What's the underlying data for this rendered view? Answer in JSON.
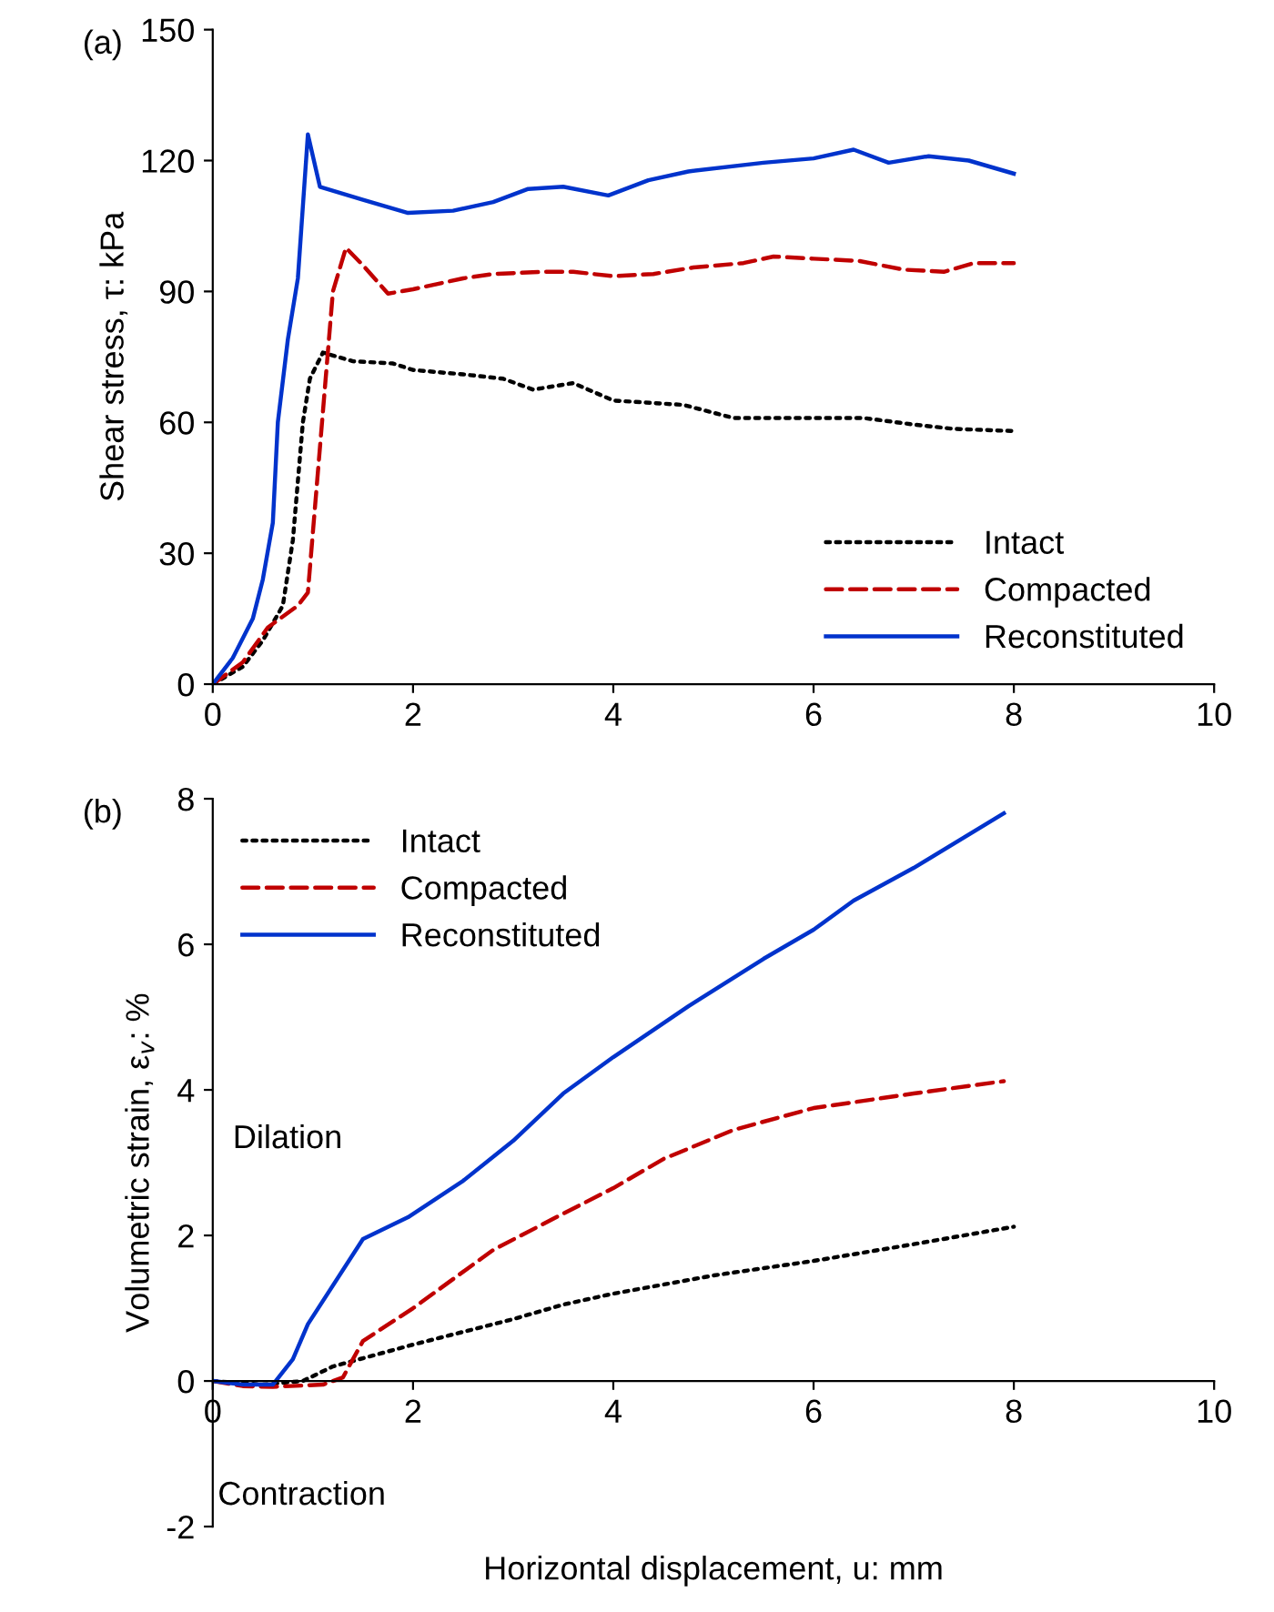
{
  "chart_data": [
    {
      "type": "line",
      "title": "(a)",
      "ylabel": "Shear stress, τ: kPa",
      "xlim": [
        0,
        10
      ],
      "xticks": [
        0,
        2,
        4,
        6,
        8,
        10
      ],
      "ylim": [
        0,
        150
      ],
      "yticks": [
        0,
        30,
        60,
        90,
        120,
        150
      ],
      "grid": false,
      "legend": "bottom right",
      "marker": "none",
      "series": [
        {
          "name": "Intact",
          "color": "#000000",
          "line_style": "dotted",
          "x": [
            0,
            0.3,
            0.5,
            0.7,
            0.8,
            0.9,
            0.97,
            1.1,
            1.4,
            1.8,
            2.0,
            2.5,
            2.9,
            3.2,
            3.6,
            4.0,
            4.7,
            5.2,
            6.0,
            6.5,
            7.0,
            7.4,
            8.0
          ],
          "values": [
            0,
            4,
            10,
            18,
            33,
            60,
            70,
            76,
            74,
            73.5,
            72,
            71,
            70,
            67.5,
            69,
            65,
            64,
            61,
            61,
            61,
            59.5,
            58.5,
            58
          ]
        },
        {
          "name": "Compacted",
          "color": "#c00000",
          "line_style": "dashed",
          "x": [
            0,
            0.3,
            0.55,
            0.85,
            0.95,
            1.2,
            1.33,
            1.5,
            1.75,
            2.0,
            2.5,
            2.8,
            3.3,
            3.6,
            4.0,
            4.4,
            4.8,
            5.3,
            5.6,
            6.0,
            6.45,
            6.9,
            7.3,
            7.6,
            8.0
          ],
          "values": [
            0,
            5,
            13,
            18,
            21,
            90,
            100,
            96,
            89.5,
            90.5,
            93,
            94,
            94.5,
            94.5,
            93.5,
            94,
            95.5,
            96.5,
            98,
            97.5,
            97,
            95,
            94.5,
            96.5,
            96.5
          ]
        },
        {
          "name": "Reconstituted",
          "color": "#0033cc",
          "line_style": "solid",
          "x": [
            0,
            0.2,
            0.4,
            0.5,
            0.6,
            0.65,
            0.75,
            0.85,
            0.95,
            1.07,
            1.5,
            1.95,
            2.4,
            2.8,
            3.15,
            3.5,
            3.95,
            4.35,
            4.75,
            5.5,
            6.0,
            6.4,
            6.75,
            7.15,
            7.55,
            8.0
          ],
          "values": [
            0,
            6,
            15,
            24,
            37,
            60,
            79,
            93,
            126,
            114,
            111,
            108,
            108.5,
            110.5,
            113.5,
            114,
            112,
            115.5,
            117.5,
            119.5,
            120.5,
            122.5,
            119.5,
            121,
            120,
            117
          ]
        }
      ]
    },
    {
      "type": "line",
      "title": "(b)",
      "xlabel": "Horizontal displacement, u: mm",
      "ylabel": "Volumetric strain, ε$_{v}$: %",
      "xlim": [
        0,
        10
      ],
      "xticks": [
        0,
        2,
        4,
        6,
        8,
        10
      ],
      "ylim": [
        -2,
        8
      ],
      "yticks": [
        -2,
        0,
        2,
        4,
        6,
        8
      ],
      "grid": false,
      "legend": "top left",
      "marker": "none",
      "annotations": [
        "Dilation",
        "Contraction"
      ],
      "series": [
        {
          "name": "Intact",
          "color": "#000000",
          "line_style": "dotted",
          "x": [
            0,
            0.5,
            0.9,
            1.2,
            2.0,
            3.0,
            3.5,
            4.0,
            5.0,
            6.0,
            7.0,
            8.0
          ],
          "values": [
            0,
            -0.05,
            0,
            0.2,
            0.5,
            0.85,
            1.05,
            1.2,
            1.45,
            1.65,
            1.88,
            2.12
          ]
        },
        {
          "name": "Compacted",
          "color": "#c00000",
          "line_style": "dashed",
          "x": [
            0,
            0.3,
            0.6,
            1.1,
            1.3,
            1.5,
            2.0,
            2.8,
            3.5,
            4.0,
            4.5,
            5.2,
            6.0,
            7.0,
            7.9
          ],
          "values": [
            0,
            -0.07,
            -0.08,
            -0.05,
            0.05,
            0.55,
            1.0,
            1.8,
            2.3,
            2.65,
            3.05,
            3.45,
            3.75,
            3.95,
            4.12
          ]
        },
        {
          "name": "Reconstituted",
          "color": "#0033cc",
          "line_style": "solid",
          "x": [
            0,
            0.3,
            0.6,
            0.8,
            0.95,
            1.5,
            1.95,
            2.5,
            3.0,
            3.5,
            4.0,
            4.75,
            5.5,
            6.0,
            6.4,
            7.0,
            7.9
          ],
          "values": [
            0,
            -0.05,
            -0.05,
            0.3,
            0.78,
            1.95,
            2.25,
            2.75,
            3.3,
            3.95,
            4.45,
            5.15,
            5.8,
            6.2,
            6.6,
            7.05,
            7.8
          ]
        }
      ]
    }
  ]
}
